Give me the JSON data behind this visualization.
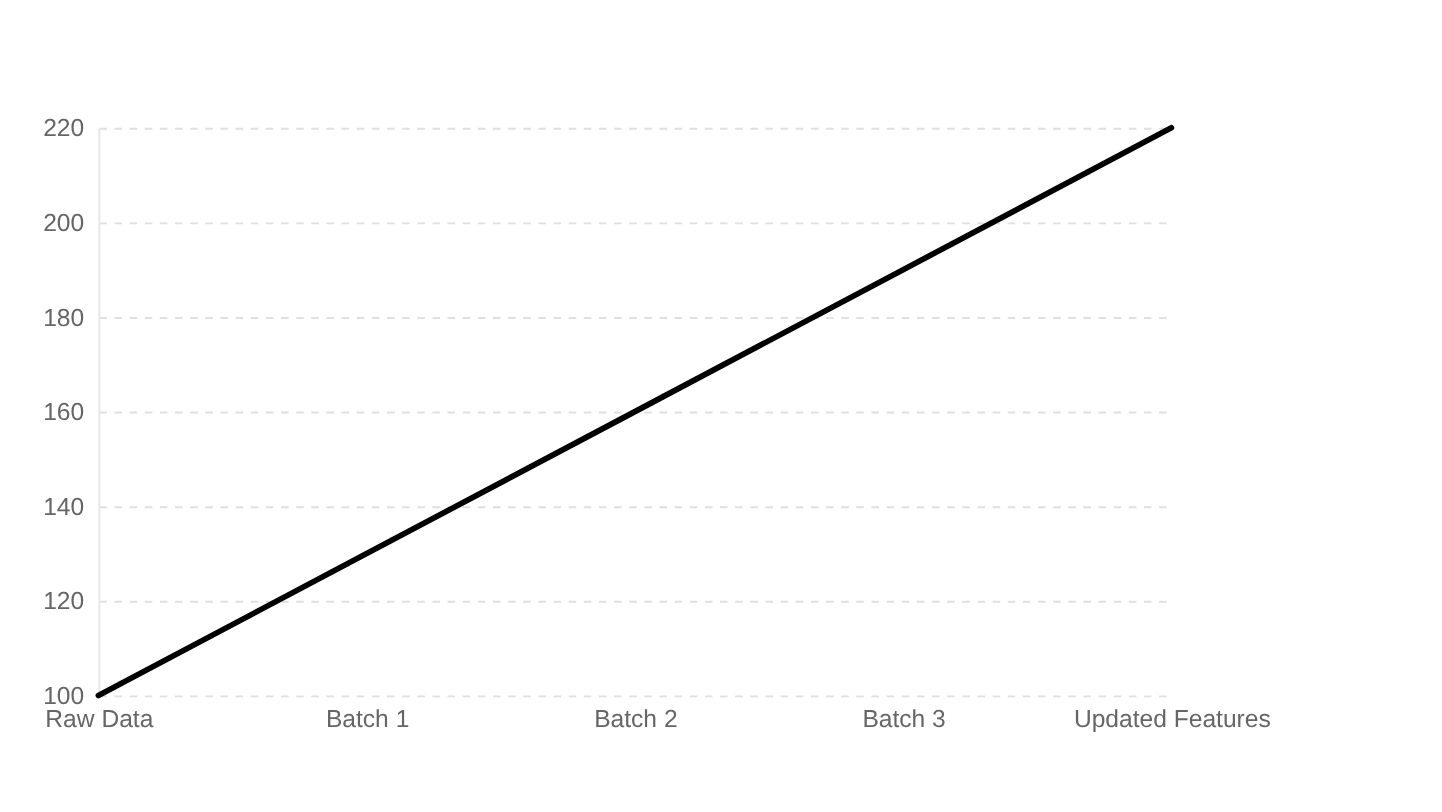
{
  "chart_data": {
    "type": "line",
    "categories": [
      "Raw Data",
      "Batch 1",
      "Batch 2",
      "Batch 3",
      "Updated Features"
    ],
    "series": [
      {
        "color": "#000000",
        "values": [
          100,
          130,
          160,
          190,
          220
        ]
      }
    ],
    "ylim": [
      100,
      220
    ],
    "yticks": [
      100,
      120,
      140,
      160,
      180,
      200,
      220
    ],
    "grid": "y",
    "marker": "none",
    "line_style": "solid"
  }
}
